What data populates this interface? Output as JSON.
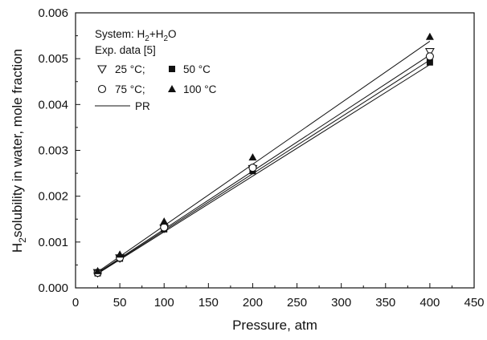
{
  "chart_data": {
    "type": "scatter",
    "xlabel": "Pressure, atm",
    "ylabel": {
      "prefix": "H",
      "sub": "2",
      "rest": "solubility in water, mole fraction"
    },
    "xlim": [
      0,
      450
    ],
    "ylim": [
      0,
      0.006
    ],
    "x_ticks": [
      "0",
      "50",
      "100",
      "150",
      "200",
      "250",
      "300",
      "350",
      "400",
      "450"
    ],
    "y_ticks": [
      "0.000",
      "0.001",
      "0.002",
      "0.003",
      "0.004",
      "0.005",
      "0.006"
    ],
    "grid": false,
    "legend": {
      "placement": "top-left",
      "system_prefix": "System: H",
      "system_sub1": "2",
      "system_mid": "+H",
      "system_sub2": "2",
      "system_suffix": "O",
      "exp_label": "Exp. data [5]",
      "entries": [
        {
          "label": "25 °C;",
          "marker": "triangle-down-open"
        },
        {
          "label": "50 °C",
          "marker": "square-filled"
        },
        {
          "label": "75 °C;",
          "marker": "circle-open"
        },
        {
          "label": "100 °C",
          "marker": "triangle-up-filled"
        }
      ],
      "line_label": "PR"
    },
    "series": [
      {
        "temperature": "25 °C",
        "marker": "triangle-down-open",
        "x": [
          25,
          50,
          100,
          200,
          400
        ],
        "y": [
          0.00033,
          0.00065,
          0.0013,
          0.0026,
          0.00515
        ]
      },
      {
        "temperature": "50 °C",
        "marker": "square-filled",
        "x": [
          25,
          50,
          100,
          200,
          400
        ],
        "y": [
          0.00032,
          0.00064,
          0.00128,
          0.00255,
          0.00492
        ]
      },
      {
        "temperature": "75 °C",
        "marker": "circle-open",
        "x": [
          25,
          50,
          100,
          200,
          400
        ],
        "y": [
          0.00033,
          0.00066,
          0.00132,
          0.00262,
          0.00505
        ]
      },
      {
        "temperature": "100 °C",
        "marker": "triangle-up-filled",
        "x": [
          25,
          50,
          100,
          200,
          400
        ],
        "y": [
          0.00037,
          0.00073,
          0.00145,
          0.00285,
          0.00548
        ]
      }
    ],
    "model_lines": [
      {
        "name": "PR",
        "x": [
          25,
          400
        ],
        "y": [
          0.00031,
          0.00487
        ]
      },
      {
        "name": "PR",
        "x": [
          25,
          400
        ],
        "y": [
          0.00032,
          0.00497
        ]
      },
      {
        "name": "PR",
        "x": [
          25,
          400
        ],
        "y": [
          0.00033,
          0.00508
        ]
      },
      {
        "name": "PR",
        "x": [
          25,
          400
        ],
        "y": [
          0.00035,
          0.00538
        ]
      }
    ]
  }
}
